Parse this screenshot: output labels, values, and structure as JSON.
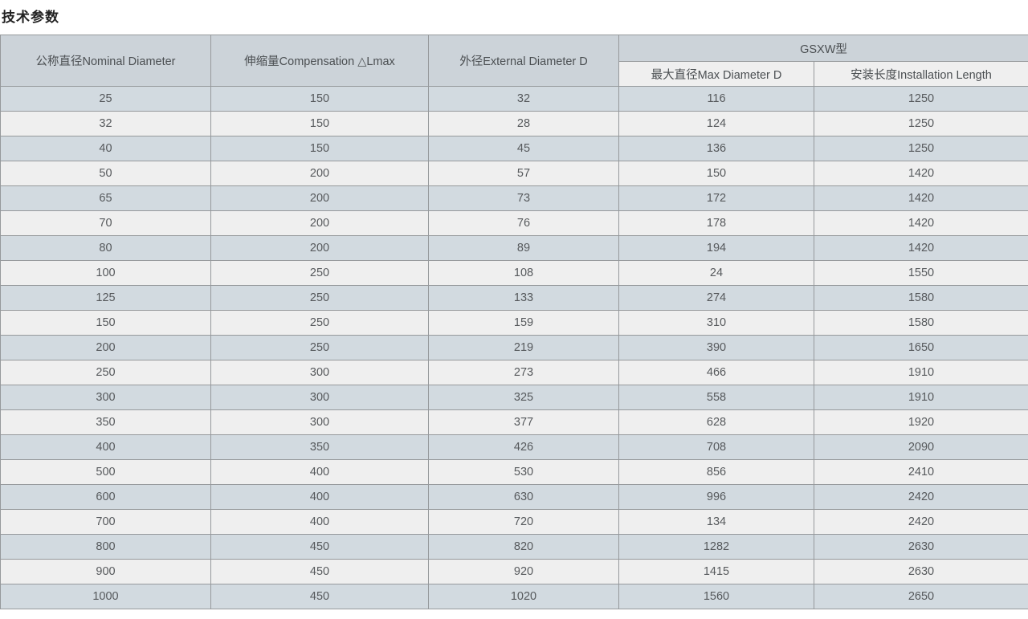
{
  "page_title": "技术参数",
  "table": {
    "headers": {
      "nominal_diameter": "公称直径Nominal Diameter",
      "compensation": "伸缩量Compensation △Lmax",
      "external_diameter": "外径External Diameter D",
      "gsxw_group": "GSXW型",
      "max_diameter": "最大直径Max Diameter D",
      "installation_length": "安装长度Installation Length"
    },
    "rows": [
      [
        "25",
        "150",
        "32",
        "116",
        "1250"
      ],
      [
        "32",
        "150",
        "28",
        "124",
        "1250"
      ],
      [
        "40",
        "150",
        "45",
        "136",
        "1250"
      ],
      [
        "50",
        "200",
        "57",
        "150",
        "1420"
      ],
      [
        "65",
        "200",
        "73",
        "172",
        "1420"
      ],
      [
        "70",
        "200",
        "76",
        "178",
        "1420"
      ],
      [
        "80",
        "200",
        "89",
        "194",
        "1420"
      ],
      [
        "100",
        "250",
        "108",
        "24",
        "1550"
      ],
      [
        "125",
        "250",
        "133",
        "274",
        "1580"
      ],
      [
        "150",
        "250",
        "159",
        "310",
        "1580"
      ],
      [
        "200",
        "250",
        "219",
        "390",
        "1650"
      ],
      [
        "250",
        "300",
        "273",
        "466",
        "1910"
      ],
      [
        "300",
        "300",
        "325",
        "558",
        "1910"
      ],
      [
        "350",
        "300",
        "377",
        "628",
        "1920"
      ],
      [
        "400",
        "350",
        "426",
        "708",
        "2090"
      ],
      [
        "500",
        "400",
        "530",
        "856",
        "2410"
      ],
      [
        "600",
        "400",
        "630",
        "996",
        "2420"
      ],
      [
        "700",
        "400",
        "720",
        "134",
        "2420"
      ],
      [
        "800",
        "450",
        "820",
        "1282",
        "2630"
      ],
      [
        "900",
        "450",
        "920",
        "1415",
        "2630"
      ],
      [
        "1000",
        "450",
        "1020",
        "1560",
        "2650"
      ]
    ]
  },
  "colors": {
    "header_bg": "#ccd3d9",
    "subheader_bg": "#efefef",
    "row_odd_bg": "#d2dae0",
    "row_even_bg": "#efefef",
    "border": "#96999c"
  }
}
